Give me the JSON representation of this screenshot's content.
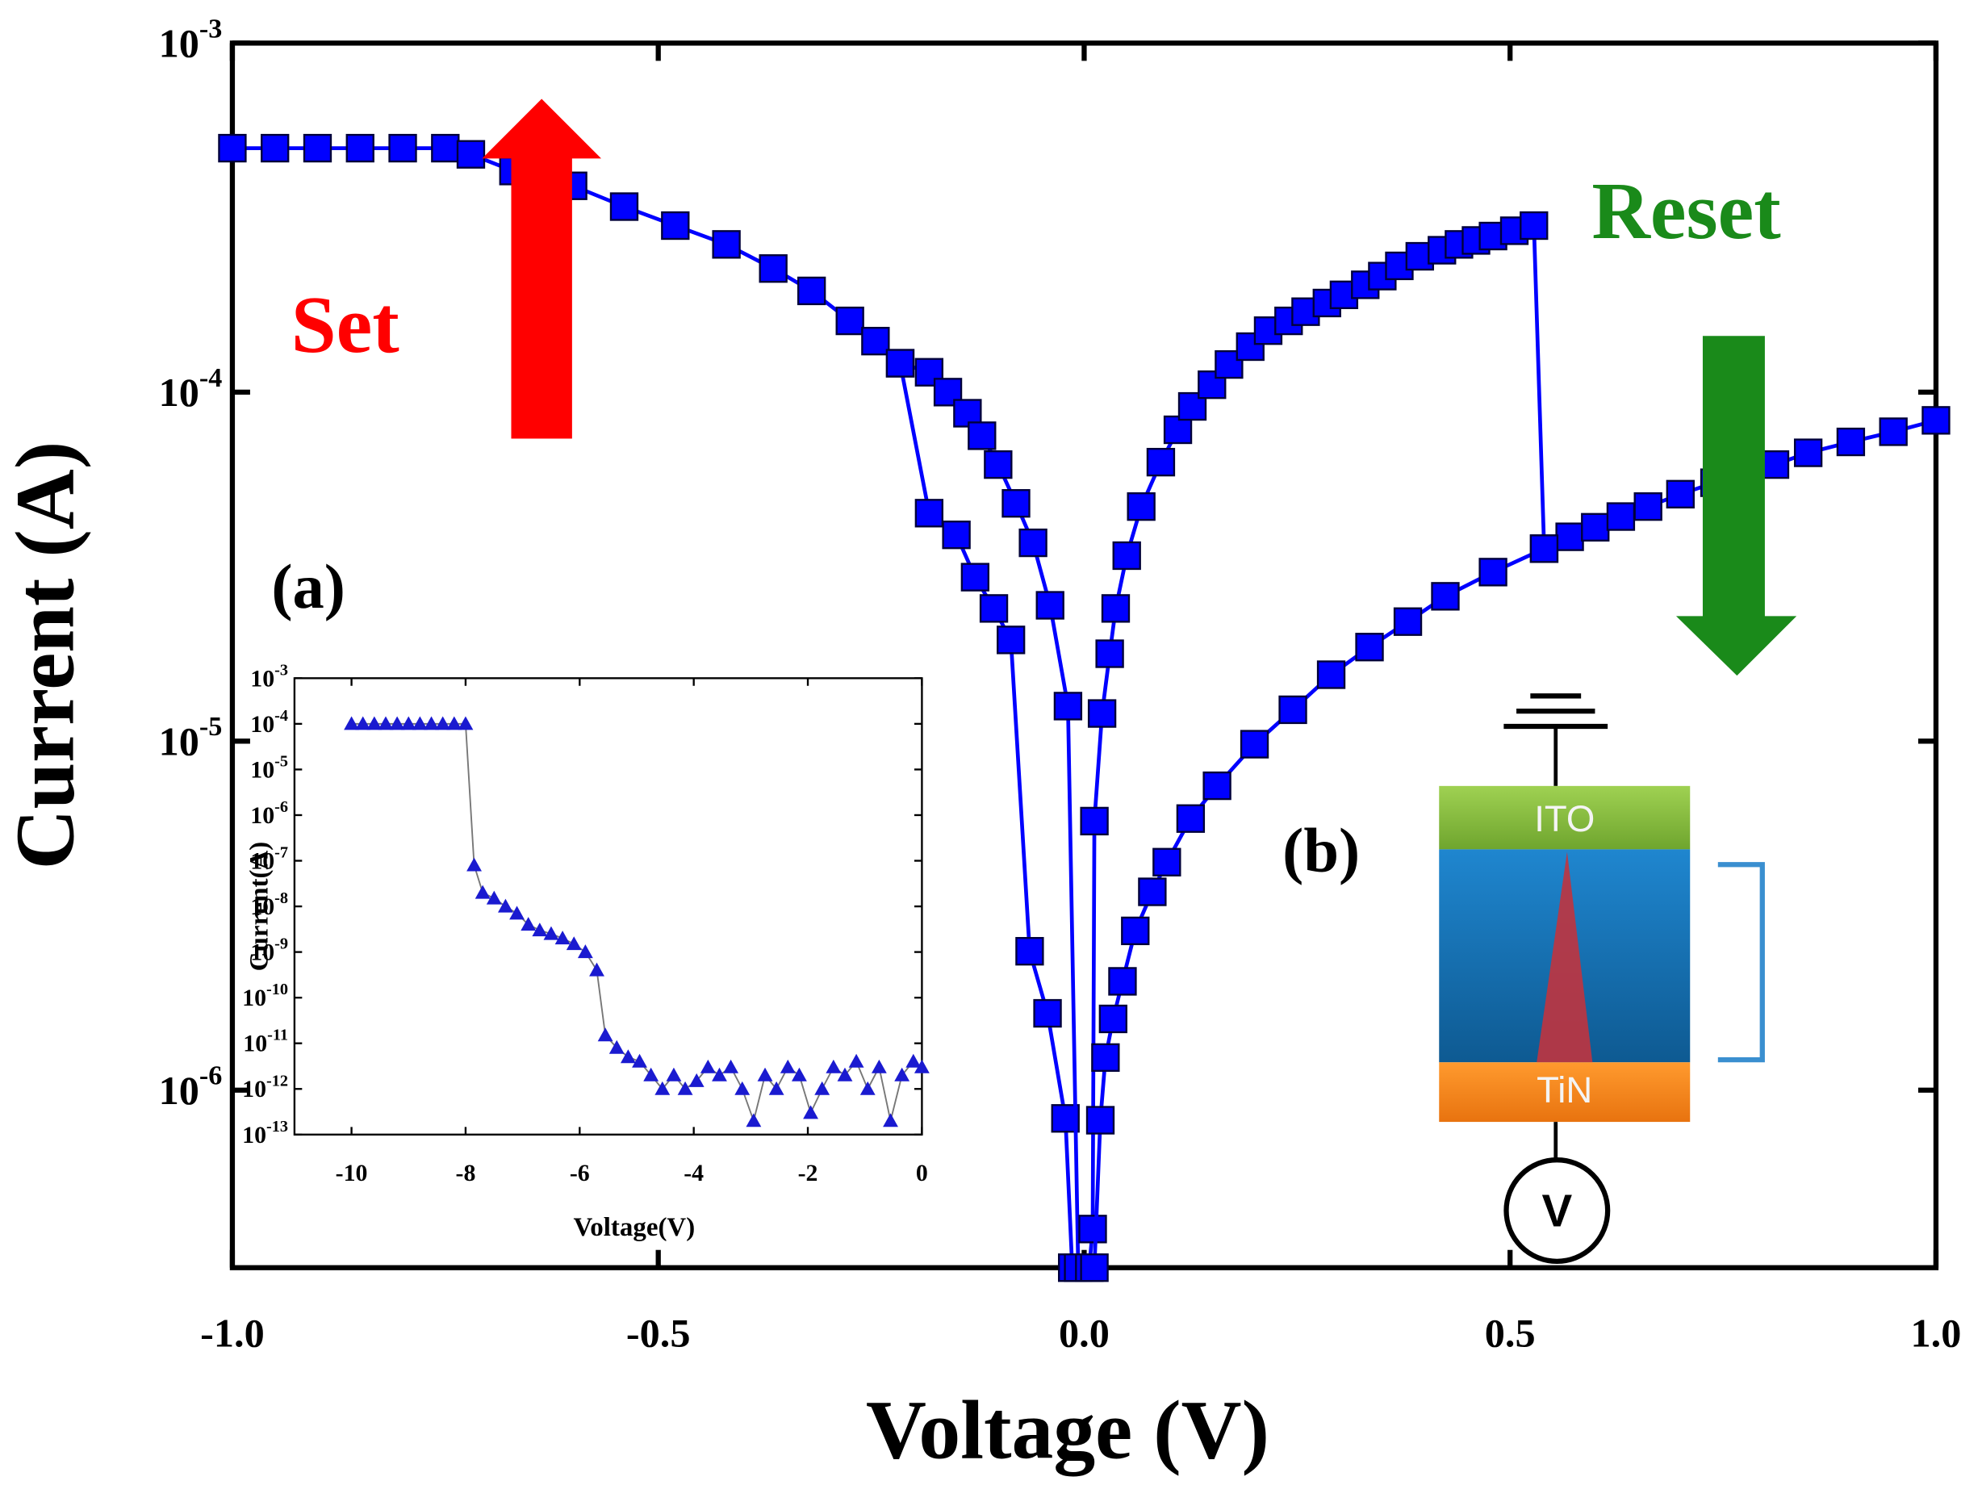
{
  "chart_data": [
    {
      "type": "line",
      "marker": "square",
      "log_y": true,
      "x_label": "Voltage (V)",
      "y_label": "Current (A)",
      "xlim": [
        -1,
        1
      ],
      "ylim": [
        3.1e-07,
        0.001
      ],
      "xticks": [
        {
          "value": -1,
          "label": "-1.0"
        },
        {
          "value": -0.5,
          "label": "-0.5"
        },
        {
          "value": 0,
          "label": "0.0"
        },
        0.5,
        {
          "value": 1,
          "label": "1.0"
        }
      ],
      "yticks": [
        {
          "value": 0.001,
          "label": "10-3"
        },
        {
          "value": 0.0001,
          "label": "10-4"
        },
        {
          "value": 1e-05,
          "label": "10-5"
        },
        {
          "value": 1e-06,
          "label": "10-6"
        }
      ],
      "annotations": [
        "Set",
        "Reset",
        "(a)",
        "(b)"
      ],
      "diagram_labels": [
        "ITO",
        "TiN",
        "V"
      ],
      "series": [
        {
          "color": "#0000ff",
          "x": [
            -1,
            -0.95,
            -0.9,
            -0.85,
            -0.8,
            -0.75,
            -0.72,
            -0.67,
            -0.6,
            -0.54,
            -0.48,
            -0.42,
            -0.365,
            -0.32,
            -0.275,
            -0.245,
            -0.216,
            -0.182,
            -0.15,
            -0.128,
            -0.106,
            -0.086,
            -0.064,
            -0.043,
            -0.022,
            -0.014
          ],
          "values": [
            0.0005,
            0.0005,
            0.0005,
            0.0005,
            0.0005,
            0.0005,
            0.00048,
            0.00043,
            0.00039,
            0.00034,
            0.0003,
            0.000265,
            0.000226,
            0.000195,
            0.00016,
            0.00014,
            0.000121,
            4.5e-05,
            3.9e-05,
            2.95e-05,
            2.4e-05,
            1.95e-05,
            2.5e-06,
            1.66e-06,
            8.3e-07,
            3.1e-07
          ]
        },
        {
          "color": "#0000ff",
          "x": [
            -0.216,
            -0.182,
            -0.16,
            -0.137,
            -0.12,
            -0.101,
            -0.08,
            -0.06,
            -0.04,
            -0.019,
            -0.007
          ],
          "values": [
            0.000121,
            0.000114,
            0.0001,
            8.7e-05,
            7.5e-05,
            6.2e-05,
            4.8e-05,
            3.7e-05,
            2.45e-05,
            1.26e-05,
            3.1e-07
          ]
        },
        {
          "color": "#0000ff",
          "x": [
            0.006,
            0.01,
            0.012,
            0.021,
            0.03,
            0.037,
            0.05,
            0.067,
            0.09,
            0.11,
            0.127,
            0.15,
            0.17,
            0.195,
            0.216,
            0.24,
            0.26,
            0.285,
            0.305,
            0.33,
            0.35,
            0.37,
            0.394,
            0.42,
            0.44,
            0.46,
            0.48,
            0.505,
            0.528,
            0.54,
            0.57,
            0.6,
            0.63,
            0.662,
            0.7,
            0.74,
            0.775,
            0.811,
            0.85,
            0.9,
            0.95,
            1.0
          ],
          "values": [
            3.1e-07,
            4e-07,
            5.9e-06,
            1.2e-05,
            1.78e-05,
            2.4e-05,
            3.4e-05,
            4.7e-05,
            6.3e-05,
            7.8e-05,
            9.1e-05,
            0.000105,
            0.00012,
            0.000135,
            0.00015,
            0.00016,
            0.00017,
            0.00018,
            0.00019,
            0.000203,
            0.000215,
            0.00023,
            0.000245,
            0.000255,
            0.000265,
            0.000272,
            0.00028,
            0.00029,
            0.0003,
            3.56e-05,
            3.85e-05,
            4.1e-05,
            4.4e-05,
            4.7e-05,
            5.1e-05,
            5.5e-05,
            5.85e-05,
            6.2e-05,
            6.7e-05,
            7.2e-05,
            7.7e-05,
            8.3e-05
          ]
        },
        {
          "color": "#0000ff",
          "x": [
            0.012,
            0.019,
            0.025,
            0.034,
            0.045,
            0.06,
            0.08,
            0.097,
            0.125,
            0.156,
            0.2,
            0.245,
            0.29,
            0.335,
            0.38,
            0.424,
            0.48,
            0.54
          ],
          "values": [
            3.1e-07,
            8.2e-07,
            1.24e-06,
            1.6e-06,
            2.05e-06,
            2.86e-06,
            3.7e-06,
            4.5e-06,
            6e-06,
            7.45e-06,
            9.8e-06,
            1.23e-05,
            1.55e-05,
            1.86e-05,
            2.2e-05,
            2.6e-05,
            3.05e-05,
            3.56e-05
          ]
        }
      ]
    },
    {
      "type": "line",
      "marker": "triangle",
      "log_y": true,
      "x_label": "Voltage(V)",
      "y_label": "Current(A)",
      "xlim": [
        -11,
        0
      ],
      "ylim": [
        1e-13,
        0.001
      ],
      "xticks": [
        -10,
        -8,
        -6,
        -4,
        -2,
        0
      ],
      "yticks": [
        {
          "value": 0.001,
          "label": "10-3"
        },
        {
          "value": 0.0001,
          "label": "10-4"
        },
        {
          "value": 1e-05,
          "label": "10-5"
        },
        {
          "value": 1e-06,
          "label": "10-6"
        },
        {
          "value": 1e-07,
          "label": "10-7"
        },
        {
          "value": 1e-08,
          "label": "10-8"
        },
        {
          "value": 1e-09,
          "label": "10-9"
        },
        {
          "value": 1e-10,
          "label": "10-10"
        },
        {
          "value": 1e-11,
          "label": "10-11"
        },
        {
          "value": 1e-12,
          "label": "10-12"
        },
        {
          "value": 1e-13,
          "label": "10-13"
        }
      ],
      "series": [
        {
          "color": "#1a1ad0",
          "line_color": "#777777",
          "x": [
            -10,
            -9.8,
            -9.6,
            -9.4,
            -9.2,
            -9,
            -8.8,
            -8.6,
            -8.4,
            -8.2,
            -8,
            -7.85,
            -7.7,
            -7.5,
            -7.3,
            -7.1,
            -6.9,
            -6.7,
            -6.5,
            -6.3,
            -6.1,
            -5.9,
            -5.7,
            -5.55,
            -5.35,
            -5.15,
            -4.95,
            -4.75,
            -4.55,
            -4.35,
            -4.15,
            -3.95,
            -3.75,
            -3.55,
            -3.35,
            -3.15,
            -2.95,
            -2.75,
            -2.55,
            -2.35,
            -2.15,
            -1.95,
            -1.75,
            -1.55,
            -1.35,
            -1.15,
            -0.95,
            -0.75,
            -0.55,
            -0.35,
            -0.15,
            0
          ],
          "values": [
            0.0001,
            0.0001,
            0.0001,
            0.0001,
            0.0001,
            0.0001,
            0.0001,
            0.0001,
            0.0001,
            0.0001,
            0.0001,
            8e-08,
            2e-08,
            1.5e-08,
            1e-08,
            7e-09,
            4e-09,
            3e-09,
            2.5e-09,
            2e-09,
            1.5e-09,
            1e-09,
            4e-10,
            1.5e-11,
            8e-12,
            5e-12,
            4e-12,
            2e-12,
            1e-12,
            2e-12,
            1e-12,
            1.5e-12,
            3e-12,
            2e-12,
            3e-12,
            1e-12,
            2e-13,
            2e-12,
            1e-12,
            3e-12,
            2e-12,
            3e-13,
            1e-12,
            3e-12,
            2e-12,
            4e-12,
            1e-12,
            3e-12,
            2e-13,
            2e-12,
            4e-12,
            3e-12
          ]
        }
      ]
    }
  ]
}
